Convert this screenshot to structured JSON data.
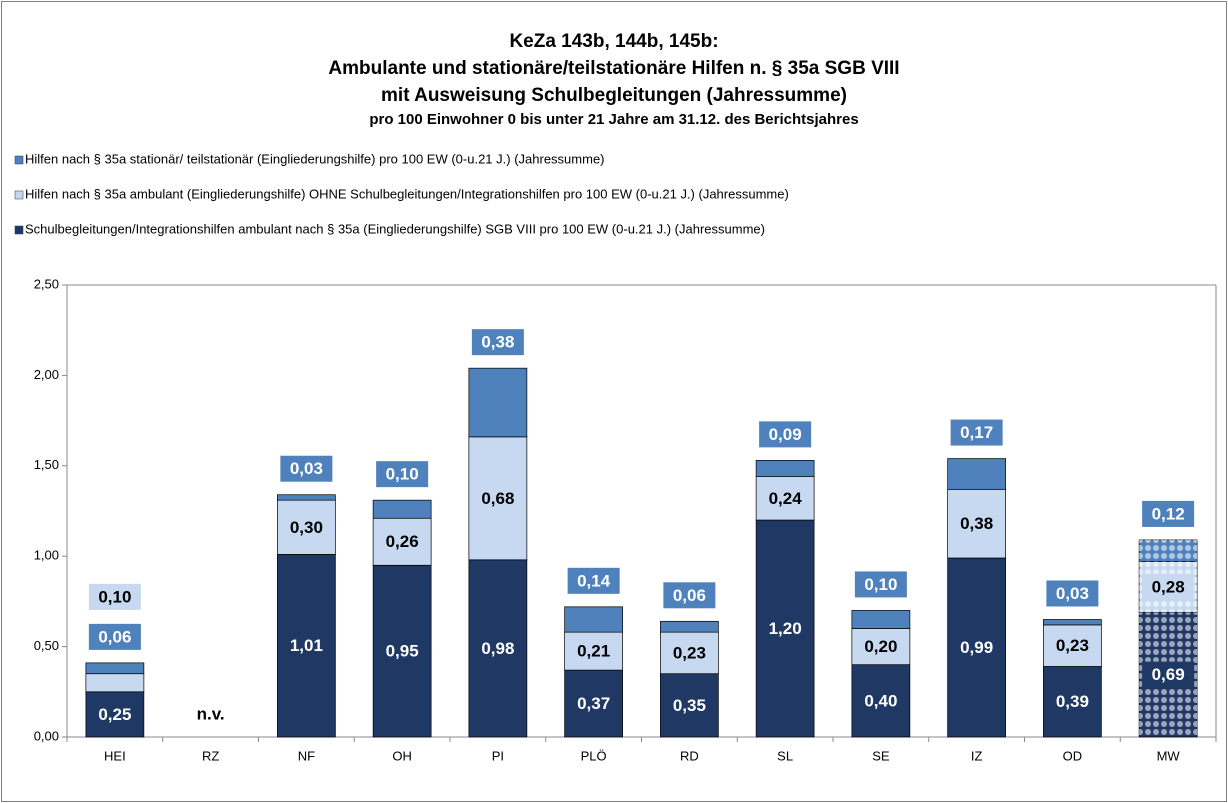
{
  "chart_data": {
    "type": "stacked_bar",
    "title": [
      "KeZa 143b, 144b, 145b:",
      "Ambulante und stationäre/teilstationäre Hilfen n. § 35a SGB VIII",
      "mit Ausweisung Schulbegleitungen (Jahressumme)"
    ],
    "subtitle": "pro 100 Einwohner 0 bis unter 21 Jahre am 31.12. des Berichtsjahres",
    "categories": [
      "HEI",
      "RZ",
      "NF",
      "OH",
      "PI",
      "PLÖ",
      "RD",
      "SL",
      "SE",
      "IZ",
      "OD",
      "MW"
    ],
    "series": [
      {
        "name": "Schulbegleitungen/Integrationshilfen ambulant nach § 35a (Eingliederungshilfe) SGB VIII pro 100 EW (0-u.21 J.) (Jahressumme)",
        "color": "#1f3864",
        "values": [
          0.25,
          null,
          1.01,
          0.95,
          0.98,
          0.37,
          0.35,
          1.2,
          0.4,
          0.99,
          0.39,
          0.69
        ],
        "value_labels": [
          "0,25",
          null,
          "1,01",
          "0,95",
          "0,98",
          "0,37",
          "0,35",
          "1,20",
          "0,40",
          "0,99",
          "0,39",
          "0,69"
        ]
      },
      {
        "name": "Hilfen nach § 35a ambulant (Eingliederungshilfe) OHNE Schulbegleitungen/Integrationshilfen pro 100 EW (0-u.21 J.) (Jahressumme)",
        "color": "#c6d9f1",
        "values": [
          0.1,
          null,
          0.3,
          0.26,
          0.68,
          0.21,
          0.23,
          0.24,
          0.2,
          0.38,
          0.23,
          0.28
        ],
        "value_labels": [
          "0,10",
          null,
          "0,30",
          "0,26",
          "0,68",
          "0,21",
          "0,23",
          "0,24",
          "0,20",
          "0,38",
          "0,23",
          "0,28"
        ]
      },
      {
        "name": "Hilfen nach § 35a stationär/ teilstationär (Eingliederungshilfe) pro 100 EW (0-u.21 J.) (Jahressumme)",
        "color": "#4f81bd",
        "values": [
          0.06,
          null,
          0.03,
          0.1,
          0.38,
          0.14,
          0.06,
          0.09,
          0.1,
          0.17,
          0.03,
          0.12
        ],
        "value_labels": [
          "0,06",
          null,
          "0,03",
          "0,10",
          "0,38",
          "0,14",
          "0,06",
          "0,09",
          "0,10",
          "0,17",
          "0,03",
          "0,12"
        ]
      }
    ],
    "annotation": {
      "category": "RZ",
      "text": "n.v."
    },
    "patterned_category": "MW",
    "ylim": [
      0,
      2.5
    ],
    "yticks": [
      {
        "value": 0,
        "label": "0,00"
      },
      {
        "value": 0.5,
        "label": "0,50"
      },
      {
        "value": 1,
        "label": "1,00"
      },
      {
        "value": 1.5,
        "label": "1,50"
      },
      {
        "value": 2,
        "label": "2,00"
      },
      {
        "value": 2.5,
        "label": "2,50"
      }
    ],
    "legend": "top-left"
  }
}
